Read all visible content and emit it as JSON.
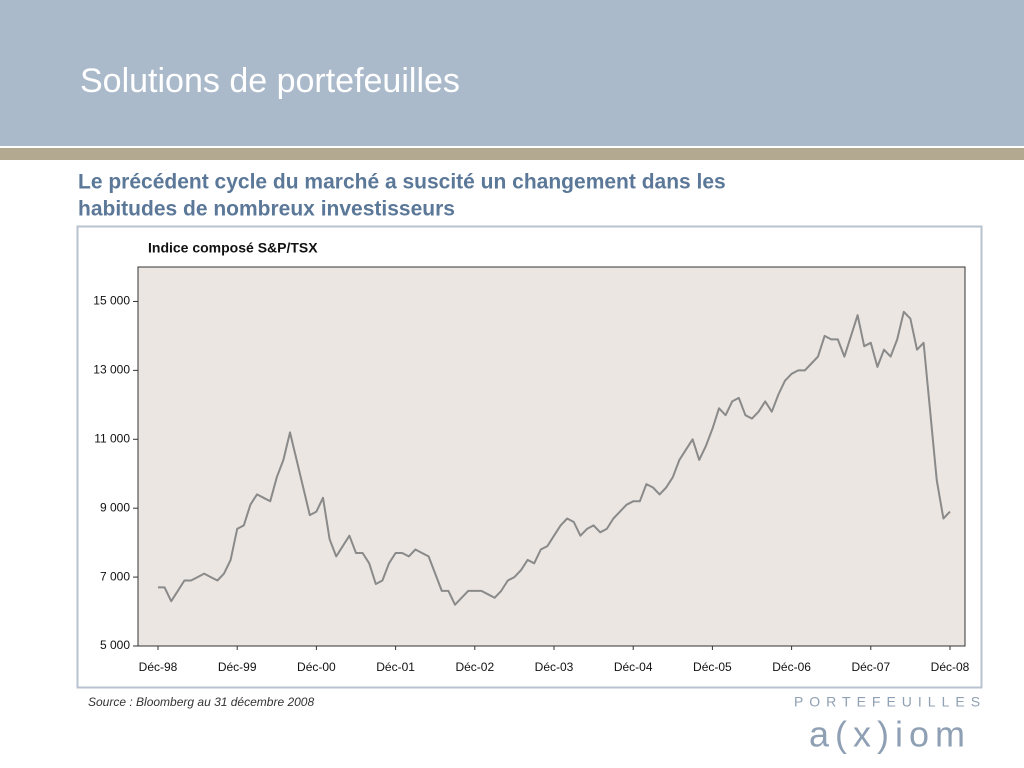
{
  "header": {
    "title": "Solutions de portefeuilles"
  },
  "heading": [
    "Le précédent cycle du marché a suscité un changement dans les",
    "habitudes de nombreux investisseurs"
  ],
  "chart_data": {
    "type": "line",
    "title": "Indice composé S&P/TSX",
    "color": "#8a8a8a",
    "x": [
      "Déc-98",
      "Jan-99",
      "Fév-99",
      "Mar-99",
      "Avr-99",
      "Mai-99",
      "Jun-99",
      "Jul-99",
      "Aoû-99",
      "Sep-99",
      "Oct-99",
      "Nov-99",
      "Déc-99",
      "Jan-00",
      "Fév-00",
      "Mar-00",
      "Avr-00",
      "Mai-00",
      "Jun-00",
      "Jul-00",
      "Aoû-00",
      "Sep-00",
      "Oct-00",
      "Nov-00",
      "Déc-00",
      "Jan-01",
      "Fév-01",
      "Mar-01",
      "Avr-01",
      "Mai-01",
      "Jun-01",
      "Jul-01",
      "Aoû-01",
      "Sep-01",
      "Oct-01",
      "Nov-01",
      "Déc-01",
      "Jan-02",
      "Fév-02",
      "Mar-02",
      "Avr-02",
      "Mai-02",
      "Jun-02",
      "Jul-02",
      "Aoû-02",
      "Sep-02",
      "Oct-02",
      "Nov-02",
      "Déc-02",
      "Jan-03",
      "Fév-03",
      "Mar-03",
      "Avr-03",
      "Mai-03",
      "Jun-03",
      "Jul-03",
      "Aoû-03",
      "Sep-03",
      "Oct-03",
      "Nov-03",
      "Déc-03",
      "Jan-04",
      "Fév-04",
      "Mar-04",
      "Avr-04",
      "Mai-04",
      "Jun-04",
      "Jul-04",
      "Aoû-04",
      "Sep-04",
      "Oct-04",
      "Nov-04",
      "Déc-04",
      "Jan-05",
      "Fév-05",
      "Mar-05",
      "Avr-05",
      "Mai-05",
      "Jun-05",
      "Jul-05",
      "Aoû-05",
      "Sep-05",
      "Oct-05",
      "Nov-05",
      "Déc-05",
      "Jan-06",
      "Fév-06",
      "Mar-06",
      "Avr-06",
      "Mai-06",
      "Jun-06",
      "Jul-06",
      "Aoû-06",
      "Sep-06",
      "Oct-06",
      "Nov-06",
      "Déc-06",
      "Jan-07",
      "Fév-07",
      "Mar-07",
      "Avr-07",
      "Mai-07",
      "Jun-07",
      "Jul-07",
      "Aoû-07",
      "Sep-07",
      "Oct-07",
      "Nov-07",
      "Déc-07",
      "Jan-08",
      "Fév-08",
      "Mar-08",
      "Avr-08",
      "Mai-08",
      "Jun-08",
      "Jul-08",
      "Aoû-08",
      "Sep-08",
      "Oct-08",
      "Nov-08",
      "Déc-08"
    ],
    "values": [
      6700,
      6700,
      6300,
      6600,
      6900,
      6900,
      7000,
      7100,
      7000,
      6900,
      7100,
      7500,
      8400,
      8500,
      9100,
      9400,
      9300,
      9200,
      9900,
      10400,
      11200,
      10400,
      9600,
      8800,
      8900,
      9300,
      8100,
      7600,
      7900,
      8200,
      7700,
      7700,
      7400,
      6800,
      6900,
      7400,
      7700,
      7700,
      7600,
      7800,
      7700,
      7600,
      7100,
      6600,
      6600,
      6200,
      6400,
      6600,
      6600,
      6600,
      6500,
      6400,
      6600,
      6900,
      7000,
      7200,
      7500,
      7400,
      7800,
      7900,
      8200,
      8500,
      8700,
      8600,
      8200,
      8400,
      8500,
      8300,
      8400,
      8700,
      8900,
      9100,
      9200,
      9200,
      9700,
      9600,
      9400,
      9600,
      9900,
      10400,
      10700,
      11000,
      10400,
      10800,
      11300,
      11900,
      11700,
      12100,
      12200,
      11700,
      11600,
      11800,
      12100,
      11800,
      12300,
      12700,
      12900,
      13000,
      13000,
      13200,
      13400,
      14000,
      13900,
      13900,
      13400,
      14000,
      14600,
      13700,
      13800,
      13100,
      13600,
      13400,
      13900,
      14700,
      14500,
      13600,
      13800,
      11800,
      9800,
      8700,
      8900
    ],
    "xticks": [
      "Déc-98",
      "Déc-99",
      "Déc-00",
      "Déc-01",
      "Déc-02",
      "Déc-03",
      "Déc-04",
      "Déc-05",
      "Déc-06",
      "Déc-07",
      "Déc-08"
    ],
    "ylim": [
      5000,
      16000
    ],
    "yticks": [
      {
        "value": 5000,
        "label": "5 000"
      },
      {
        "value": 7000,
        "label": "7 000"
      },
      {
        "value": 9000,
        "label": "9 000"
      },
      {
        "value": 11000,
        "label": "11 000"
      },
      {
        "value": 13000,
        "label": "13 000"
      },
      {
        "value": 15000,
        "label": "15 000"
      }
    ]
  },
  "source": "Source : Bloomberg au 31 décembre 2008",
  "logo": {
    "top": "PORTEFEUILLES",
    "name": "a(x)iom"
  }
}
